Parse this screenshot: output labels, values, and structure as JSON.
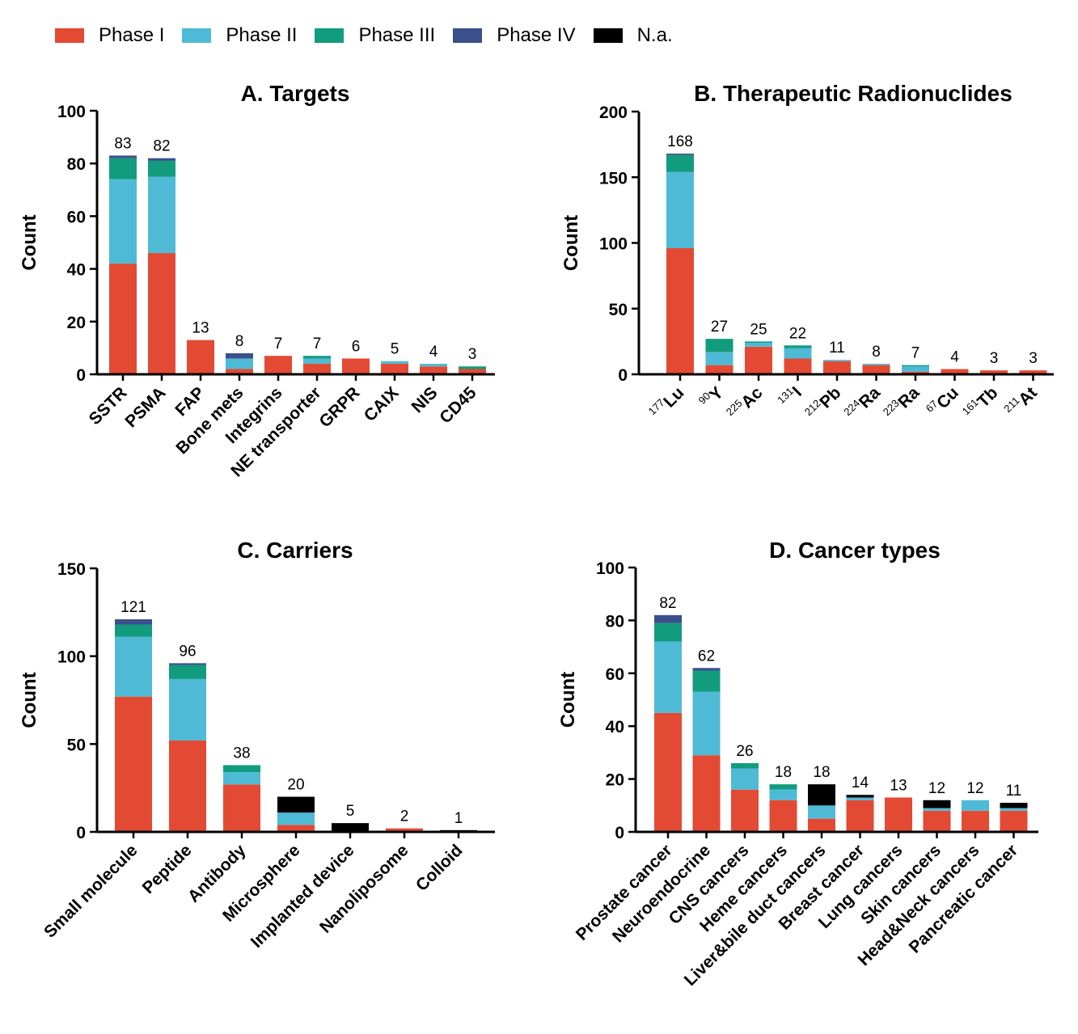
{
  "legend": {
    "items": [
      {
        "label": "Phase I",
        "color": "#e34a33"
      },
      {
        "label": "Phase II",
        "color": "#4fbad6"
      },
      {
        "label": "Phase III",
        "color": "#129c7e"
      },
      {
        "label": "Phase IV",
        "color": "#3b4f8c"
      },
      {
        "label": "N.a.",
        "color": "#000000"
      }
    ]
  },
  "chart_data": [
    {
      "id": "A",
      "type": "bar",
      "stacked": true,
      "title": "A. Targets",
      "ylabel": "Count",
      "ylim": [
        0,
        100
      ],
      "yticks": [
        0,
        20,
        40,
        60,
        80,
        100
      ],
      "categories": [
        "SSTR",
        "PSMA",
        "FAP",
        "Bone mets",
        "Integrins",
        "NE transporter",
        "GRPR",
        "CAIX",
        "NIS",
        "CD45"
      ],
      "totals": [
        83,
        82,
        13,
        8,
        7,
        7,
        6,
        5,
        4,
        3
      ],
      "series": [
        {
          "name": "Phase I",
          "values": [
            42,
            46,
            13,
            2,
            7,
            4,
            6,
            4,
            3,
            2
          ]
        },
        {
          "name": "Phase II",
          "values": [
            32,
            29,
            0,
            4,
            0,
            2,
            0,
            1,
            1,
            0
          ]
        },
        {
          "name": "Phase III",
          "values": [
            8,
            6,
            0,
            0,
            0,
            1,
            0,
            0,
            0,
            1
          ]
        },
        {
          "name": "Phase IV",
          "values": [
            1,
            1,
            0,
            2,
            0,
            0,
            0,
            0,
            0,
            0
          ]
        },
        {
          "name": "N.a.",
          "values": [
            0,
            0,
            0,
            0,
            0,
            0,
            0,
            0,
            0,
            0
          ]
        }
      ]
    },
    {
      "id": "B",
      "type": "bar",
      "stacked": true,
      "title": "B. Therapeutic Radionuclides",
      "ylabel": "Count",
      "ylim": [
        0,
        200
      ],
      "yticks": [
        0,
        50,
        100,
        150,
        200
      ],
      "categories": [
        "177 Lu",
        "90 Y",
        "225 Ac",
        "131 I",
        "212 Pb",
        "224 Ra",
        "223 Ra",
        "67 Cu",
        "161 Tb",
        "211 At"
      ],
      "category_parts": [
        {
          "sup": "177",
          "el": "Lu"
        },
        {
          "sup": "90",
          "el": "Y"
        },
        {
          "sup": "225",
          "el": "Ac"
        },
        {
          "sup": "131",
          "el": "I"
        },
        {
          "sup": "212",
          "el": "Pb"
        },
        {
          "sup": "224",
          "el": "Ra"
        },
        {
          "sup": "223",
          "el": "Ra"
        },
        {
          "sup": "67",
          "el": "Cu"
        },
        {
          "sup": "161",
          "el": "Tb"
        },
        {
          "sup": "211",
          "el": "At"
        }
      ],
      "totals": [
        168,
        27,
        25,
        22,
        11,
        8,
        7,
        4,
        3,
        3
      ],
      "series": [
        {
          "name": "Phase I",
          "values": [
            96,
            7,
            21,
            12,
            10,
            7,
            2,
            4,
            3,
            3
          ]
        },
        {
          "name": "Phase II",
          "values": [
            58,
            10,
            3,
            8,
            1,
            1,
            4,
            0,
            0,
            0
          ]
        },
        {
          "name": "Phase III",
          "values": [
            13,
            10,
            1,
            2,
            0,
            0,
            1,
            0,
            0,
            0
          ]
        },
        {
          "name": "Phase IV",
          "values": [
            1,
            0,
            0,
            0,
            0,
            0,
            0,
            0,
            0,
            0
          ]
        },
        {
          "name": "N.a.",
          "values": [
            0,
            0,
            0,
            0,
            0,
            0,
            0,
            0,
            0,
            0
          ]
        }
      ]
    },
    {
      "id": "C",
      "type": "bar",
      "stacked": true,
      "title": "C. Carriers",
      "ylabel": "Count",
      "ylim": [
        0,
        150
      ],
      "yticks": [
        0,
        50,
        100,
        150
      ],
      "categories": [
        "Small molecule",
        "Peptide",
        "Antibody",
        "Microsphere",
        "Implanted device",
        "Nanoliposome",
        "Colloid"
      ],
      "totals": [
        121,
        96,
        38,
        20,
        5,
        2,
        1
      ],
      "series": [
        {
          "name": "Phase I",
          "values": [
            77,
            52,
            27,
            4,
            0,
            2,
            0
          ]
        },
        {
          "name": "Phase II",
          "values": [
            34,
            35,
            7,
            7,
            0,
            0,
            0
          ]
        },
        {
          "name": "Phase III",
          "values": [
            7,
            8,
            4,
            0,
            0,
            0,
            0
          ]
        },
        {
          "name": "Phase IV",
          "values": [
            3,
            1,
            0,
            0,
            0,
            0,
            0
          ]
        },
        {
          "name": "N.a.",
          "values": [
            0,
            0,
            0,
            9,
            5,
            0,
            1
          ]
        }
      ]
    },
    {
      "id": "D",
      "type": "bar",
      "stacked": true,
      "title": "D. Cancer types",
      "ylabel": "Count",
      "ylim": [
        0,
        100
      ],
      "yticks": [
        0,
        20,
        40,
        60,
        80,
        100
      ],
      "categories": [
        "Prostate cancer",
        "Neuroendocrine",
        "CNS cancers",
        "Heme cancers",
        "Liver&bile duct cancers",
        "Breast cancer",
        "Lung cancers",
        "Skin cancers",
        "Head&Neck cancers",
        "Pancreatic cancer"
      ],
      "totals": [
        82,
        62,
        26,
        18,
        18,
        14,
        13,
        12,
        12,
        11
      ],
      "series": [
        {
          "name": "Phase I",
          "values": [
            45,
            29,
            16,
            12,
            5,
            12,
            13,
            8,
            8,
            8
          ]
        },
        {
          "name": "Phase II",
          "values": [
            27,
            24,
            8,
            4,
            5,
            1,
            0,
            1,
            4,
            1
          ]
        },
        {
          "name": "Phase III",
          "values": [
            7,
            8,
            2,
            2,
            0,
            0,
            0,
            0,
            0,
            0
          ]
        },
        {
          "name": "Phase IV",
          "values": [
            3,
            1,
            0,
            0,
            0,
            0,
            0,
            0,
            0,
            0
          ]
        },
        {
          "name": "N.a.",
          "values": [
            0,
            0,
            0,
            0,
            8,
            1,
            0,
            3,
            0,
            2
          ]
        }
      ]
    }
  ]
}
